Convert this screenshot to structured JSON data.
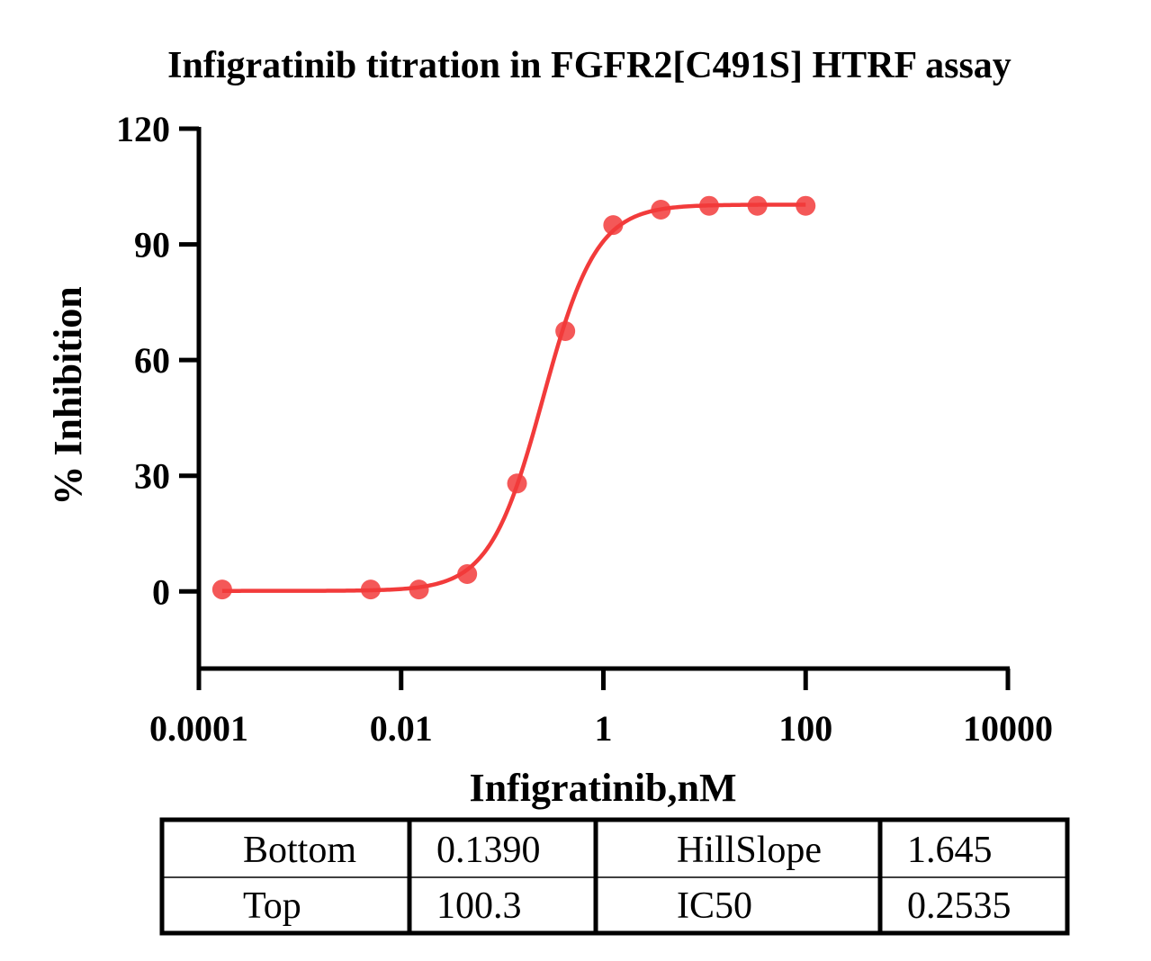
{
  "chart_data": {
    "type": "scatter",
    "title": "Infigratinib titration in FGFR2[C491S] HTRF assay",
    "xlabel": "Infigratinib,nM",
    "ylabel": "% Inhibition",
    "x_scale": "log",
    "xlim": [
      0.0001,
      10000
    ],
    "ylim": [
      -20,
      120
    ],
    "x_ticks": [
      0.0001,
      0.01,
      1,
      100,
      10000
    ],
    "x_tick_labels": [
      "0.0001",
      "0.01",
      "1",
      "100",
      "10000"
    ],
    "y_ticks": [
      0,
      30,
      60,
      90,
      120
    ],
    "y_tick_labels": [
      "0",
      "30",
      "60",
      "90",
      "120"
    ],
    "grid": false,
    "series": [
      {
        "color": "#f23b3b",
        "x": [
          0.00017,
          0.005,
          0.015,
          0.045,
          0.14,
          0.42,
          1.25,
          3.7,
          11.1,
          33.3,
          100
        ],
        "y": [
          0.5,
          0.5,
          0.5,
          4.5,
          28,
          67.5,
          95,
          99,
          100,
          100,
          100
        ]
      }
    ],
    "fit": {
      "model": "four-parameter logistic",
      "bottom": 0.139,
      "top": 100.3,
      "hillslope": 1.645,
      "ic50": 0.2535,
      "color": "#f23b3b"
    },
    "table": {
      "rows": [
        [
          "Bottom",
          "0.1390",
          "HillSlope",
          "1.645"
        ],
        [
          "Top",
          "100.3",
          "IC50",
          "0.2535"
        ]
      ]
    }
  }
}
